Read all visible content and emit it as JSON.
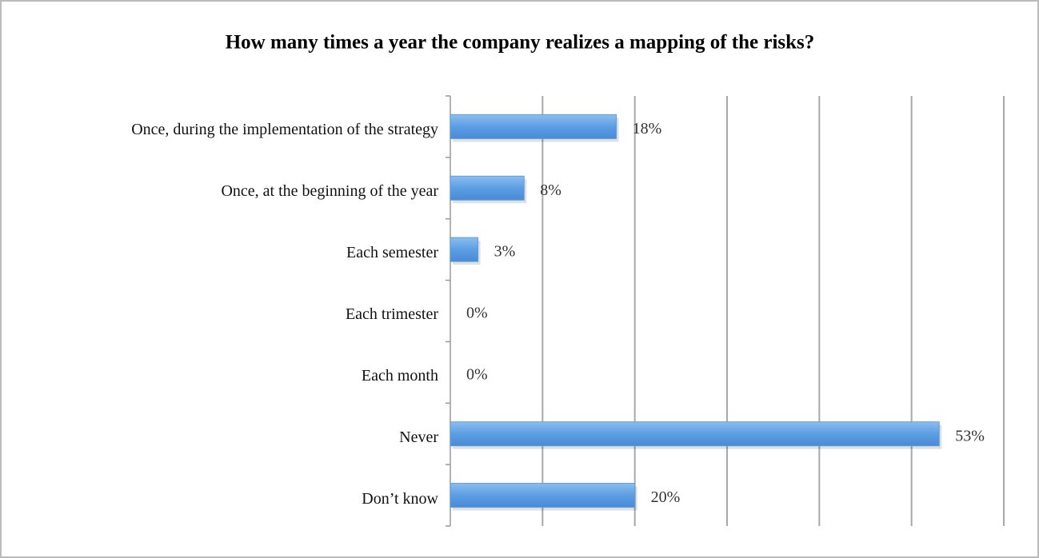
{
  "chart_data": {
    "type": "bar",
    "orientation": "horizontal",
    "title": "How many times a year the company realizes a mapping of the risks?",
    "categories": [
      "Once, during the implementation of the strategy",
      "Once, at the beginning of the year",
      "Each semester",
      "Each trimester",
      "Each month",
      "Never",
      "Don’t know"
    ],
    "values": [
      18,
      8,
      3,
      0,
      0,
      53,
      20
    ],
    "value_labels": [
      "18%",
      "8%",
      "3%",
      "0%",
      "0%",
      "53%",
      "20%"
    ],
    "color": "#5b9ee3",
    "xlim": [
      0,
      60
    ],
    "xticks": [
      0,
      10,
      20,
      30,
      40,
      50,
      60
    ],
    "grid": true
  }
}
